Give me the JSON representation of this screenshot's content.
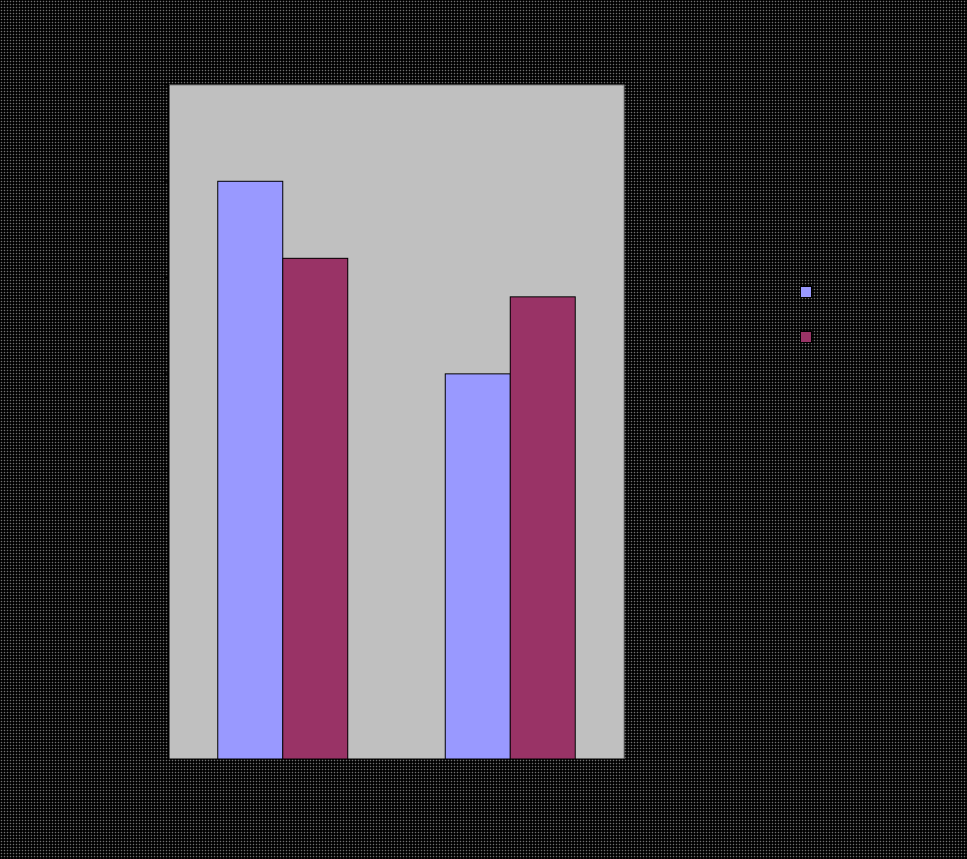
{
  "chart_data": {
    "type": "bar",
    "title": "",
    "xlabel": "",
    "ylabel": "",
    "unit_label": "",
    "ylim": [
      0,
      70
    ],
    "y_ticks": [
      "",
      "",
      "",
      "",
      "",
      "",
      "",
      ""
    ],
    "categories": [
      "",
      ""
    ],
    "series": [
      {
        "name": "",
        "color": "#9999ff",
        "values": [
          60,
          40
        ]
      },
      {
        "name": "",
        "color": "#993366",
        "values": [
          52,
          48
        ]
      }
    ],
    "plot_background": "#c0c0c0",
    "legend": "right",
    "grid": false
  }
}
